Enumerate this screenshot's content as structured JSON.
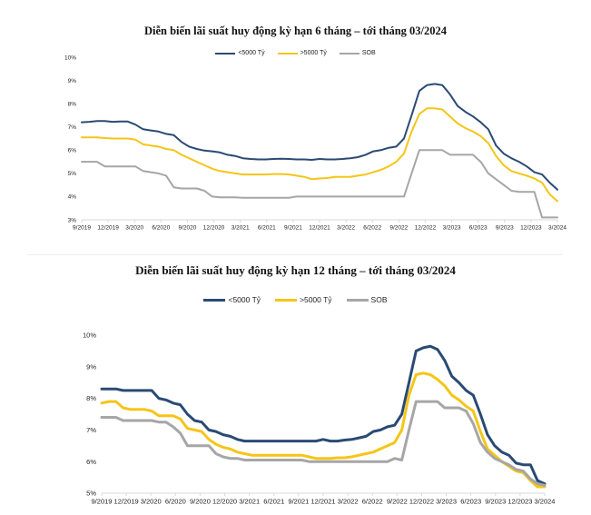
{
  "chart_data": [
    {
      "type": "line",
      "title": "Diễn biến lãi suất huy động kỳ hạn 6 tháng – tới tháng 03/2024",
      "xlabel": "",
      "ylabel": "",
      "ylim": [
        3,
        10
      ],
      "y_ticks": [
        "3%",
        "4%",
        "5%",
        "6%",
        "7%",
        "8%",
        "9%",
        "10%"
      ],
      "x_ticks": [
        "9/2019",
        "12/2019",
        "3/2020",
        "6/2020",
        "9/2020",
        "12/2020",
        "3/2021",
        "6/2021",
        "9/2021",
        "12/2021",
        "3/2022",
        "6/2022",
        "9/2022",
        "12/2022",
        "3/2023",
        "6/2023",
        "9/2023",
        "12/2023",
        "3/2024"
      ],
      "grid": false,
      "legend_position": "top-center",
      "series": [
        {
          "name": "<5000 Tỷ",
          "color": "#2a4a74",
          "values": [
            7.2,
            7.22,
            7.25,
            7.25,
            7.22,
            7.23,
            7.23,
            7.1,
            6.9,
            6.85,
            6.8,
            6.7,
            6.65,
            6.35,
            6.15,
            6.05,
            5.98,
            5.95,
            5.9,
            5.8,
            5.75,
            5.65,
            5.62,
            5.6,
            5.6,
            5.62,
            5.63,
            5.62,
            5.6,
            5.6,
            5.58,
            5.62,
            5.6,
            5.6,
            5.62,
            5.65,
            5.7,
            5.8,
            5.95,
            6.0,
            6.1,
            6.15,
            6.5,
            7.5,
            8.55,
            8.8,
            8.85,
            8.8,
            8.4,
            7.9,
            7.65,
            7.45,
            7.2,
            6.9,
            6.2,
            5.85,
            5.65,
            5.5,
            5.3,
            5.05,
            4.95,
            4.6,
            4.3
          ]
        },
        {
          "name": ">5000 Tỷ",
          "color": "#f5c518",
          "values": [
            6.55,
            6.55,
            6.55,
            6.52,
            6.5,
            6.5,
            6.5,
            6.45,
            6.25,
            6.2,
            6.15,
            6.05,
            6.0,
            5.8,
            5.65,
            5.5,
            5.35,
            5.2,
            5.1,
            5.05,
            5.0,
            4.95,
            4.95,
            4.95,
            4.95,
            4.97,
            4.97,
            4.95,
            4.9,
            4.85,
            4.75,
            4.78,
            4.8,
            4.85,
            4.85,
            4.85,
            4.9,
            4.95,
            5.05,
            5.15,
            5.3,
            5.5,
            5.85,
            6.8,
            7.55,
            7.8,
            7.8,
            7.75,
            7.45,
            7.15,
            6.95,
            6.8,
            6.6,
            6.3,
            5.75,
            5.35,
            5.1,
            5.0,
            4.9,
            4.78,
            4.6,
            4.1,
            3.8
          ]
        },
        {
          "name": "SOB",
          "color": "#a6a6a6",
          "values": [
            5.5,
            5.5,
            5.5,
            5.3,
            5.3,
            5.3,
            5.3,
            5.3,
            5.1,
            5.05,
            5.0,
            4.9,
            4.4,
            4.35,
            4.35,
            4.35,
            4.25,
            4.0,
            3.97,
            3.97,
            3.97,
            3.95,
            3.95,
            3.95,
            3.95,
            3.95,
            3.95,
            3.95,
            4.0,
            4.0,
            4.0,
            4.0,
            4.0,
            4.0,
            4.0,
            4.0,
            4.0,
            4.0,
            4.0,
            4.0,
            4.0,
            4.0,
            4.0,
            5.0,
            6.0,
            6.0,
            6.0,
            6.0,
            5.8,
            5.8,
            5.8,
            5.8,
            5.5,
            5.0,
            4.75,
            4.5,
            4.25,
            4.2,
            4.2,
            4.2,
            3.1,
            3.1,
            3.1
          ]
        }
      ]
    },
    {
      "type": "line",
      "title": "Diễn biến lãi suất huy động kỳ hạn 12 tháng – tới tháng 03/2024",
      "xlabel": "",
      "ylabel": "",
      "ylim": [
        5,
        10
      ],
      "y_ticks": [
        "5%",
        "6%",
        "7%",
        "8%",
        "9%",
        "10%"
      ],
      "x_ticks": [
        "9/2019",
        "12/2019",
        "3/2020",
        "6/2020",
        "9/2020",
        "12/2020",
        "3/2021",
        "6/2021",
        "9/2021",
        "12/2021",
        "3/2022",
        "6/2022",
        "9/2022",
        "12/2022",
        "3/2023",
        "6/2023",
        "9/2023",
        "12/2023",
        "3/2024"
      ],
      "grid": false,
      "legend_position": "top-center",
      "series": [
        {
          "name": "<5000 Tỷ",
          "color": "#2a4a74",
          "values": [
            8.3,
            8.3,
            8.3,
            8.25,
            8.25,
            8.25,
            8.25,
            8.25,
            8.0,
            7.95,
            7.85,
            7.8,
            7.5,
            7.3,
            7.25,
            7.0,
            6.95,
            6.85,
            6.8,
            6.7,
            6.65,
            6.65,
            6.65,
            6.65,
            6.65,
            6.65,
            6.65,
            6.65,
            6.65,
            6.65,
            6.65,
            6.7,
            6.65,
            6.65,
            6.68,
            6.7,
            6.75,
            6.8,
            6.95,
            7.0,
            7.1,
            7.15,
            7.5,
            8.5,
            9.5,
            9.6,
            9.65,
            9.55,
            9.2,
            8.7,
            8.5,
            8.25,
            8.1,
            7.5,
            6.85,
            6.5,
            6.3,
            6.2,
            5.95,
            5.9,
            5.9,
            5.4,
            5.3
          ]
        },
        {
          "name": ">5000 Tỷ",
          "color": "#f5c518",
          "values": [
            7.85,
            7.9,
            7.9,
            7.7,
            7.65,
            7.65,
            7.65,
            7.6,
            7.45,
            7.45,
            7.45,
            7.35,
            7.05,
            7.0,
            6.95,
            6.7,
            6.55,
            6.45,
            6.4,
            6.3,
            6.25,
            6.2,
            6.2,
            6.2,
            6.2,
            6.2,
            6.2,
            6.2,
            6.2,
            6.15,
            6.1,
            6.1,
            6.1,
            6.12,
            6.12,
            6.15,
            6.2,
            6.25,
            6.3,
            6.4,
            6.5,
            6.6,
            7.0,
            8.1,
            8.75,
            8.8,
            8.75,
            8.6,
            8.4,
            8.1,
            7.95,
            7.75,
            7.6,
            6.95,
            6.4,
            6.2,
            6.0,
            5.85,
            5.7,
            5.65,
            5.4,
            5.2,
            5.2
          ]
        },
        {
          "name": "SOB",
          "color": "#a6a6a6",
          "values": [
            7.4,
            7.4,
            7.4,
            7.3,
            7.3,
            7.3,
            7.3,
            7.3,
            7.25,
            7.25,
            7.1,
            6.9,
            6.5,
            6.5,
            6.5,
            6.5,
            6.25,
            6.15,
            6.1,
            6.1,
            6.05,
            6.05,
            6.05,
            6.05,
            6.05,
            6.05,
            6.05,
            6.05,
            6.05,
            6.0,
            6.0,
            6.0,
            6.0,
            6.0,
            6.0,
            6.0,
            6.0,
            6.0,
            6.0,
            6.0,
            6.0,
            6.1,
            6.05,
            7.0,
            7.9,
            7.9,
            7.9,
            7.9,
            7.7,
            7.7,
            7.7,
            7.6,
            7.2,
            6.6,
            6.3,
            6.1,
            6.0,
            5.9,
            5.75,
            5.7,
            5.45,
            5.3,
            5.25
          ]
        }
      ]
    }
  ]
}
